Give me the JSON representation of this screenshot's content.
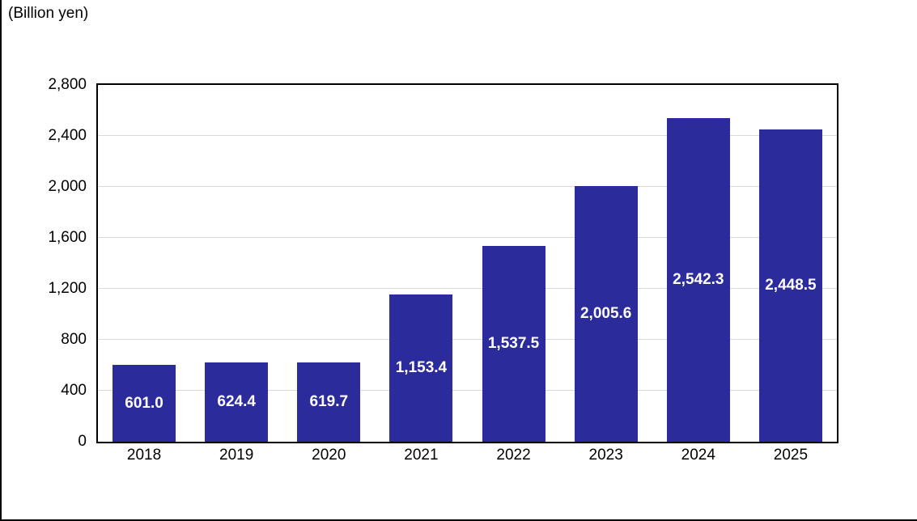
{
  "chart_data": {
    "type": "bar",
    "title": "",
    "unit_label": "(Billion yen)",
    "xlabel": "",
    "ylabel": "",
    "categories": [
      "2018",
      "2019",
      "2020",
      "2021",
      "2022",
      "2023",
      "2024",
      "2025"
    ],
    "values": [
      601.0,
      624.4,
      619.7,
      1153.4,
      1537.5,
      2005.6,
      2542.3,
      2448.5
    ],
    "value_labels": [
      "601.0",
      "624.4",
      "619.7",
      "1,153.4",
      "1,537.5",
      "2,005.6",
      "2,542.3",
      "2,448.5"
    ],
    "ylim": [
      0,
      2800
    ],
    "ytick_interval": 400,
    "yticks": [
      0,
      400,
      800,
      1200,
      1600,
      2000,
      2400,
      2800
    ],
    "ytick_labels": [
      "0",
      "400",
      "800",
      "1,200",
      "1,600",
      "2,000",
      "2,400",
      "2,800"
    ],
    "grid": "horizontal",
    "legend": "none",
    "colors": {
      "bar": "#2B2B9C",
      "bar_value_text": "#FFFFFF",
      "axis_border": "#000000",
      "gridline": "#D9D9D9",
      "tick_text": "#000000",
      "background": "#FFFFFF"
    }
  }
}
